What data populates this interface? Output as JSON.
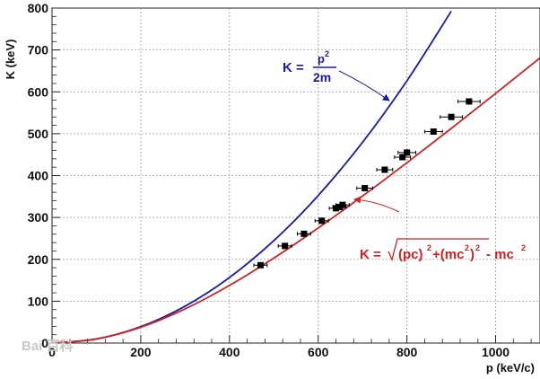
{
  "chart_data": {
    "type": "line",
    "xlabel": "p (keV/c)",
    "ylabel": "K (keV)",
    "xlim": [
      0,
      1100
    ],
    "ylim": [
      0,
      800
    ],
    "x_ticks": [
      0,
      200,
      400,
      600,
      800,
      1000
    ],
    "y_ticks": [
      0,
      100,
      200,
      300,
      400,
      500,
      600,
      700,
      800
    ],
    "grid": true,
    "series": [
      {
        "kind": "curve",
        "formula": "classical",
        "color": "#1a1aa8",
        "x": [
          0,
          100,
          200,
          300,
          400,
          500,
          600,
          700,
          800,
          900
        ],
        "y": [
          0,
          9.8,
          39.1,
          88.1,
          156.6,
          244.6,
          352.3,
          479.5,
          626.3,
          792.6
        ]
      },
      {
        "kind": "curve",
        "formula": "relativistic",
        "color": "#d02020",
        "x": [
          0,
          100,
          200,
          300,
          400,
          500,
          600,
          700,
          800,
          900,
          1000,
          1100
        ],
        "y": [
          0,
          9.7,
          37.8,
          81.6,
          137.7,
          203.0,
          274.8,
          351.2,
          430.7,
          512.6,
          596.2,
          681.0
        ]
      },
      {
        "kind": "points",
        "color": "#000000",
        "x": [
          470,
          525,
          568,
          608,
          640,
          648,
          655,
          705,
          750,
          790,
          800,
          860,
          900,
          940
        ],
        "y": [
          186,
          232,
          261,
          292,
          322,
          325,
          330,
          370,
          414,
          444,
          455,
          505,
          540,
          577
        ],
        "xerr": [
          15,
          15,
          15,
          15,
          15,
          15,
          15,
          18,
          18,
          18,
          20,
          20,
          25,
          25
        ]
      }
    ],
    "annotations": {
      "blue": {
        "lhs": "K =",
        "num": "p",
        "num_exp": "2",
        "den": "2m"
      },
      "red": {
        "lhs": "K =",
        "pc": "(pc)",
        "exp1": "2",
        "plus": "+(mc",
        "exp2": "2",
        "close": ")",
        "exp3": "2",
        "minus": " - mc",
        "exp4": "2"
      }
    }
  },
  "watermark": {
    "text": "Bai 百科"
  }
}
